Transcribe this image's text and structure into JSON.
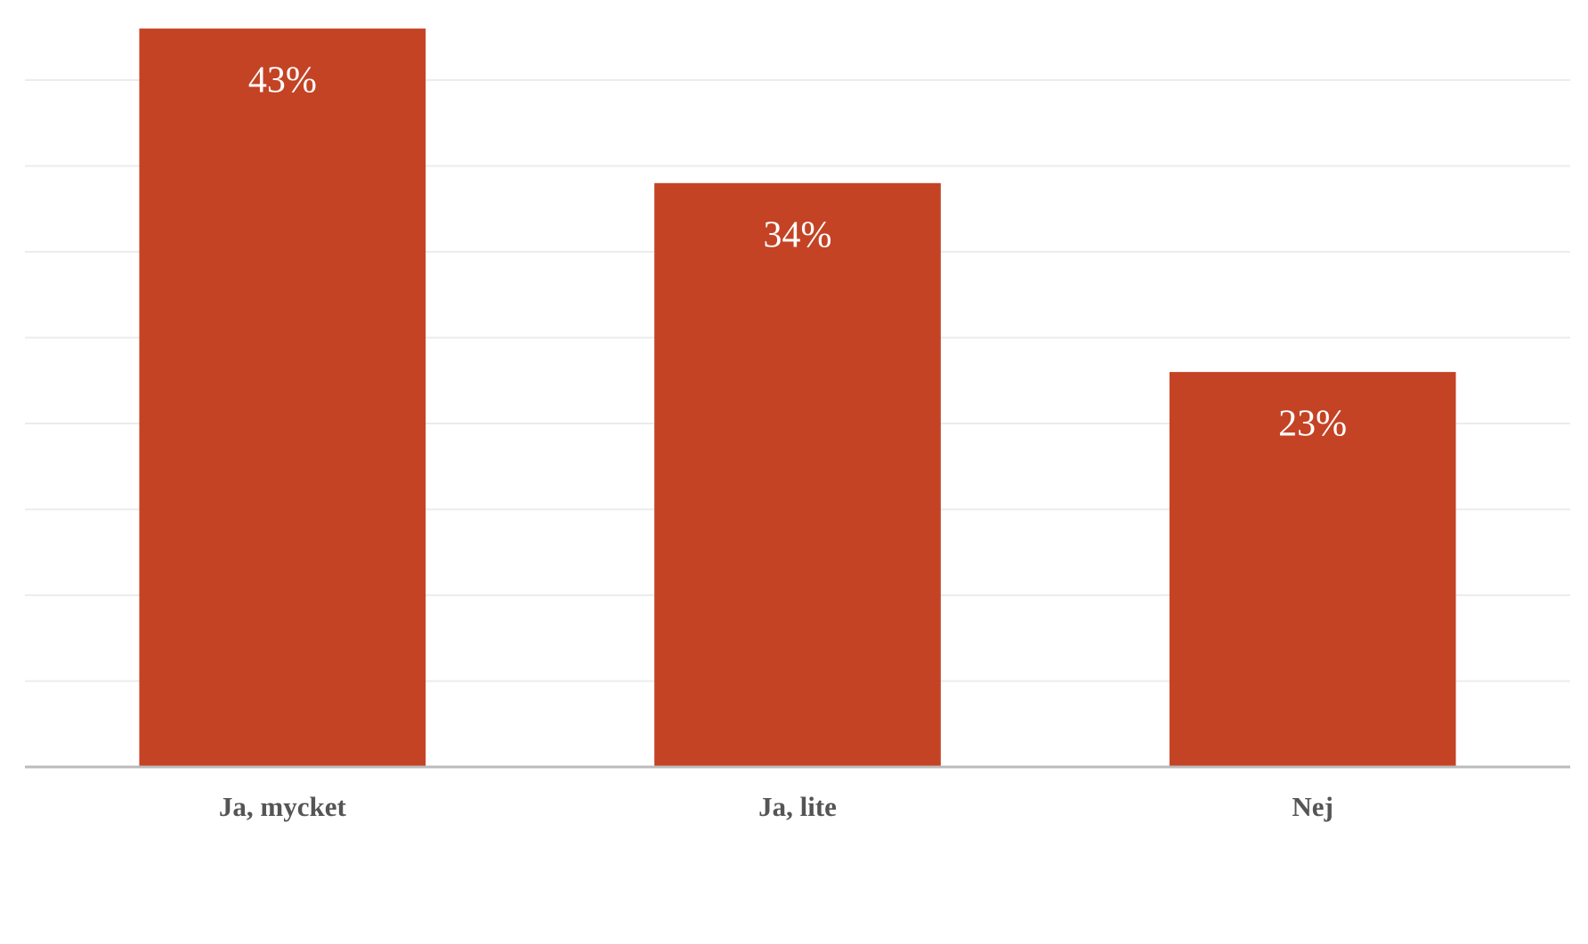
{
  "chart_data": {
    "type": "bar",
    "categories": [
      "Ja, mycket",
      "Ja, lite",
      "Nej"
    ],
    "values": [
      43,
      34,
      23
    ],
    "value_labels": [
      "43%",
      "34%",
      "23%"
    ],
    "color": "#c44325",
    "ylim": [
      0,
      45
    ],
    "yticks": [
      0,
      5,
      10,
      15,
      20,
      25,
      30,
      35,
      40
    ],
    "grid": true
  }
}
